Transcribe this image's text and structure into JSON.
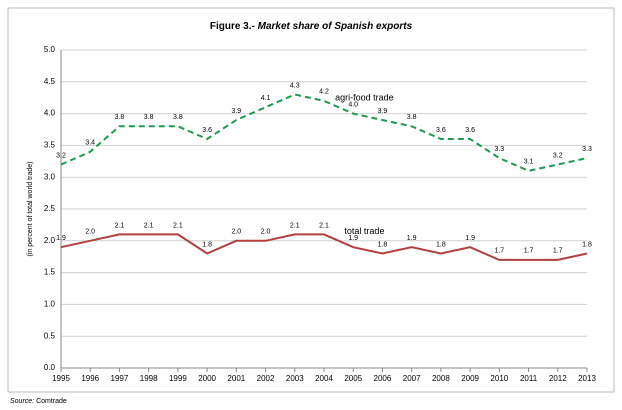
{
  "chart_data": {
    "type": "line",
    "title": [
      "Figure 3.-",
      "Market share of Spanish exports"
    ],
    "ylabel": "(in percent of total world trade)",
    "source": [
      "Source:",
      "Comtrade"
    ],
    "categories": [
      "1995",
      "1996",
      "1997",
      "1998",
      "1999",
      "2000",
      "2001",
      "2002",
      "2003",
      "2004",
      "2005",
      "2006",
      "2007",
      "2008",
      "2009",
      "2010",
      "2011",
      "2012",
      "2013"
    ],
    "series": [
      {
        "name": "agri-food trade",
        "color": "#1e9a4e",
        "dashed": true,
        "values": [
          3.2,
          3.4,
          3.8,
          3.8,
          3.8,
          3.6,
          3.9,
          4.1,
          4.3,
          4.2,
          4.0,
          3.9,
          3.8,
          3.6,
          3.6,
          3.3,
          3.1,
          3.2,
          3.3
        ],
        "value_labels": [
          "3.2",
          "3.4",
          "3.8",
          "3.8",
          "3.8",
          "3.6",
          "3.9",
          "4.1",
          "4.3",
          "4.2",
          "4.0",
          "3.9",
          "3.8",
          "3.6",
          "3.6",
          "3.3",
          "3.1",
          "3.2",
          "3.3"
        ]
      },
      {
        "name": "total trade",
        "color": "#b0403d",
        "dashed": false,
        "values": [
          1.9,
          2.0,
          2.1,
          2.1,
          2.1,
          1.8,
          2.0,
          2.0,
          2.1,
          2.1,
          1.9,
          1.8,
          1.9,
          1.8,
          1.9,
          1.7,
          1.7,
          1.7,
          1.8
        ],
        "value_labels": [
          "1.9",
          "2.0",
          "2.1",
          "2.1",
          "2.1",
          "1.8",
          "2.0",
          "2.0",
          "2.1",
          "2.1",
          "1.9",
          "1.8",
          "1.9",
          "1.8",
          "1.9",
          "1.7",
          "1.7",
          "1.7",
          "1.8"
        ]
      }
    ],
    "ylim": [
      0,
      5
    ],
    "yticks": [
      {
        "value": 0,
        "label": "0.0"
      },
      0.5,
      {
        "value": 1,
        "label": "1.0"
      },
      1.5,
      {
        "value": 2,
        "label": "2.0"
      },
      2.5,
      {
        "value": 3,
        "label": "3.0"
      },
      3.5,
      {
        "value": 4,
        "label": "4.0"
      },
      4.5,
      {
        "value": 5,
        "label": "5.0"
      }
    ],
    "grid": true
  }
}
